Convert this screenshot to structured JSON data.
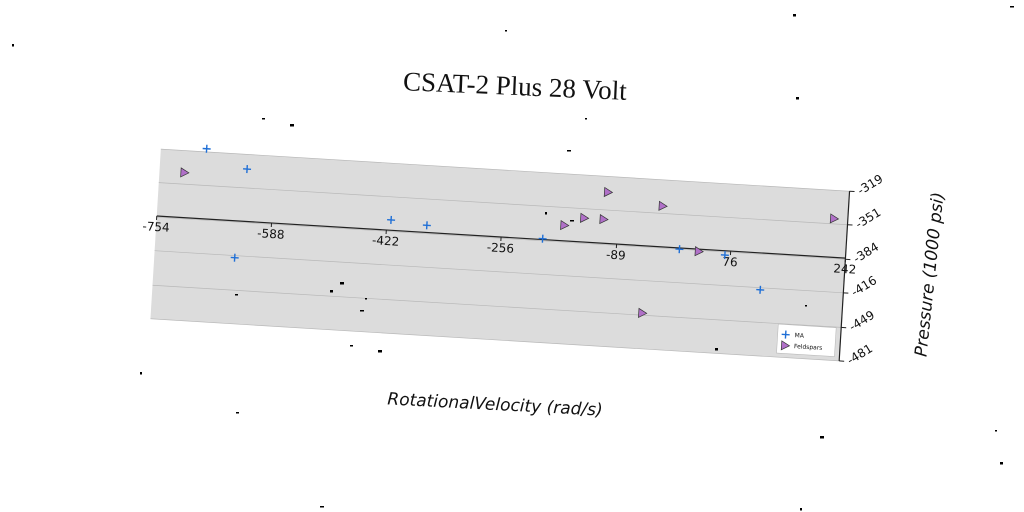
{
  "chart_data": {
    "type": "scatter",
    "title": "CSAT-2 Plus 28 Volt",
    "xlabel": "RotationalVelocity (rad/s)",
    "ylabel": "Pressure (1000 psi)",
    "xlim": [
      -754,
      242
    ],
    "ylim": [
      -481,
      -319
    ],
    "x_ticks": [
      -754,
      -588,
      -422,
      -256,
      -89,
      76,
      242
    ],
    "y_ticks": [
      -319,
      -351,
      -384,
      -416,
      -449,
      -481
    ],
    "grid": true,
    "legend_position": "bottom-right",
    "colors": {
      "MA": "#1f6fd6",
      "Feldspars": "#b070c8",
      "plot_bg": "#dcdcdc"
    },
    "series": [
      {
        "name": "MA",
        "marker": "plus",
        "points": [
          {
            "x": -688,
            "y": -316
          },
          {
            "x": -628,
            "y": -333
          },
          {
            "x": -416,
            "y": -373
          },
          {
            "x": -364,
            "y": -376
          },
          {
            "x": -196,
            "y": -382
          },
          {
            "x": 2,
            "y": -384
          },
          {
            "x": 68,
            "y": -387
          },
          {
            "x": 122,
            "y": -418
          },
          {
            "x": -638,
            "y": -418
          }
        ]
      },
      {
        "name": "Feldspars",
        "marker": "triangle-right",
        "points": [
          {
            "x": -718,
            "y": -340
          },
          {
            "x": -106,
            "y": -334
          },
          {
            "x": -26,
            "y": -344
          },
          {
            "x": 222,
            "y": -346
          },
          {
            "x": -166,
            "y": -368
          },
          {
            "x": -138,
            "y": -360
          },
          {
            "x": -110,
            "y": -360
          },
          {
            "x": 30,
            "y": -385
          },
          {
            "x": -46,
            "y": -447
          }
        ]
      }
    ]
  }
}
